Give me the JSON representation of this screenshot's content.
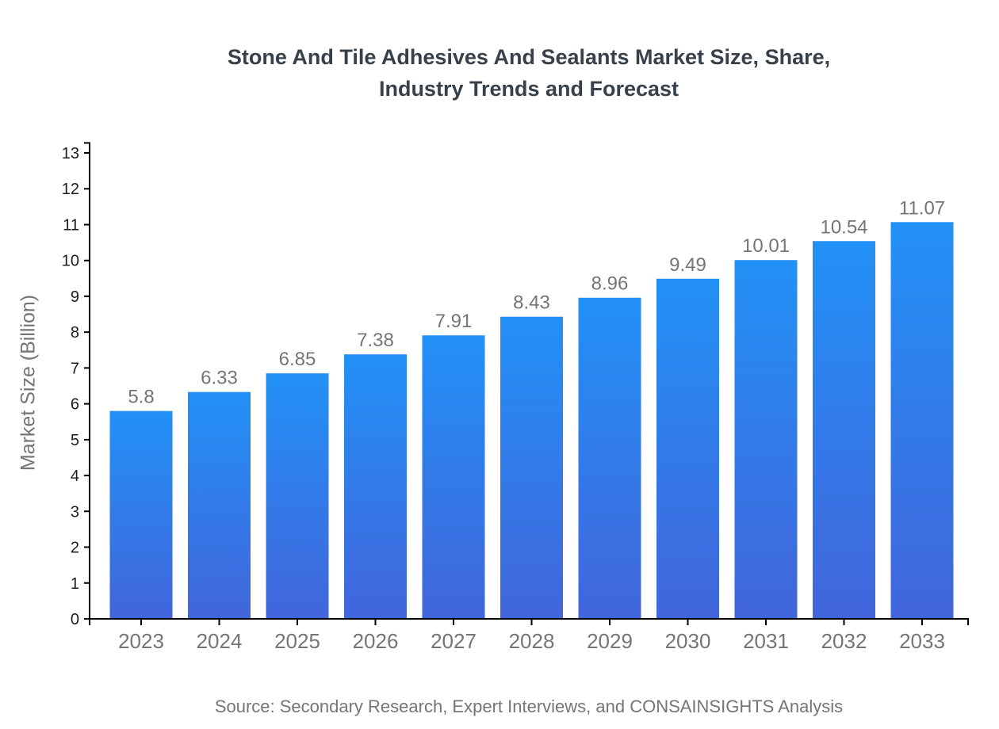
{
  "page": {
    "background": "#ffffff"
  },
  "chart_data": {
    "type": "bar",
    "title": "Stone And Tile Adhesives And Sealants Market Size, Share, Industry Trends and Forecast",
    "title_lines": [
      "Stone And Tile Adhesives And Sealants Market Size, Share,",
      "Industry Trends and Forecast"
    ],
    "categories": [
      "2023",
      "2024",
      "2025",
      "2026",
      "2027",
      "2028",
      "2029",
      "2030",
      "2031",
      "2032",
      "2033"
    ],
    "values": [
      5.8,
      6.33,
      6.85,
      7.38,
      7.91,
      8.43,
      8.96,
      9.49,
      10.01,
      10.54,
      11.07
    ],
    "value_labels": [
      "5.8",
      "6.33",
      "6.85",
      "7.38",
      "7.91",
      "8.43",
      "8.96",
      "9.49",
      "10.01",
      "10.54",
      "11.07"
    ],
    "xlabel": "",
    "ylabel": "Market Size (Billion)",
    "ylim": [
      0,
      13.28
    ],
    "yticks": [
      0,
      1,
      2,
      3,
      4,
      5,
      6,
      7,
      8,
      9,
      10,
      11,
      12,
      13
    ],
    "grid": false,
    "legend": null,
    "bar_gradient_top": "#2291f6",
    "bar_gradient_bottom": "#4265dc",
    "axis_color": "#000000",
    "tick_label_color": "#1c1c1c",
    "gray_label_color": "#757575",
    "title_color": "#38404a",
    "source": "Source: Secondary Research, Expert Interviews, and CONSAINSIGHTS Analysis"
  }
}
